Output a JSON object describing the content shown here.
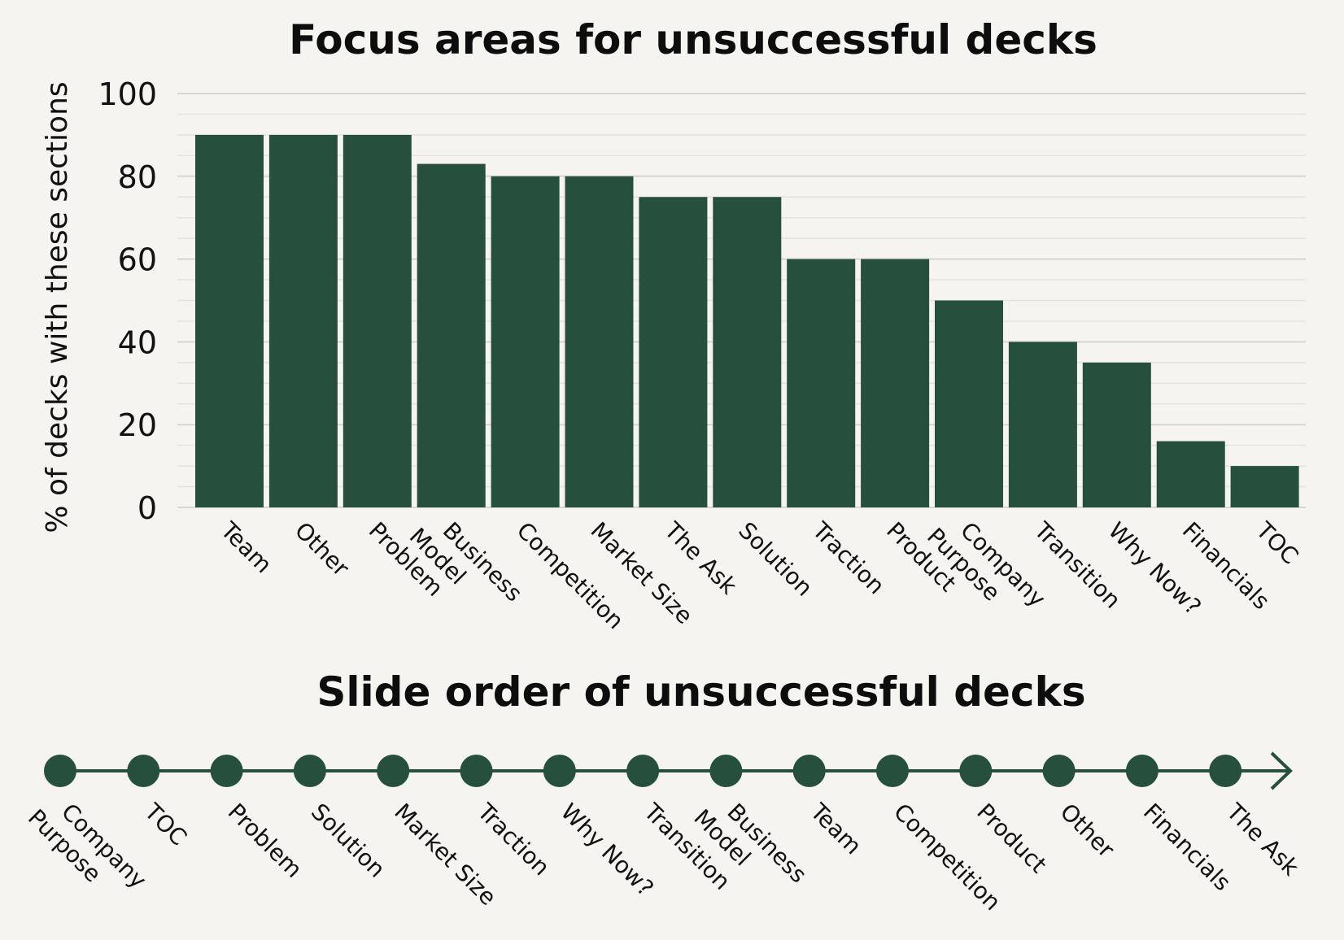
{
  "chart_data": [
    {
      "type": "bar",
      "title": "Focus areas for unsuccessful decks",
      "ylabel": "% of decks with these sections",
      "xlabel": "",
      "ylim": [
        0,
        100
      ],
      "yticks": [
        0,
        20,
        40,
        60,
        80,
        100
      ],
      "grid": true,
      "categories": [
        [
          "Team"
        ],
        [
          "Other"
        ],
        [
          "Problem"
        ],
        [
          "Business",
          "Model"
        ],
        [
          "Competition"
        ],
        [
          "Market Size"
        ],
        [
          "The Ask"
        ],
        [
          "Solution"
        ],
        [
          "Traction"
        ],
        [
          "Product"
        ],
        [
          "Company",
          "Purpose"
        ],
        [
          "Transition"
        ],
        [
          "Why Now?"
        ],
        [
          "Financials"
        ],
        [
          "TOC"
        ]
      ],
      "values": [
        90,
        90,
        90,
        83,
        80,
        80,
        75,
        75,
        60,
        60,
        50,
        40,
        35,
        16,
        10
      ],
      "bar_color": "#264f3d"
    },
    {
      "type": "timeline",
      "title": "Slide order of unsuccessful decks",
      "steps": [
        [
          "Company",
          "Purpose"
        ],
        [
          "TOC"
        ],
        [
          "Problem"
        ],
        [
          "Solution"
        ],
        [
          "Market Size"
        ],
        [
          "Traction"
        ],
        [
          "Why Now?"
        ],
        [
          "Transition"
        ],
        [
          "Business",
          "Model"
        ],
        [
          "Team"
        ],
        [
          "Competition"
        ],
        [
          "Product"
        ],
        [
          "Other"
        ],
        [
          "Financials"
        ],
        [
          "The Ask"
        ]
      ],
      "color": "#264f3d"
    }
  ]
}
